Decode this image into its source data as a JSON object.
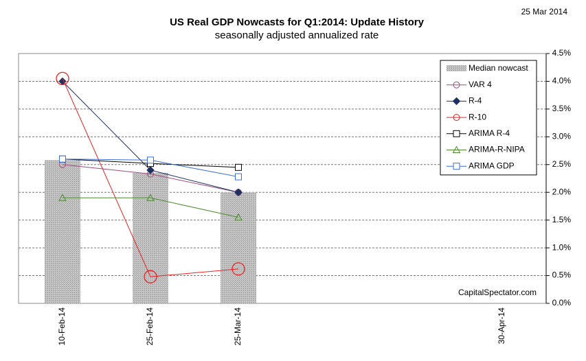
{
  "chart_data": {
    "type": "line",
    "title": "US Real GDP Nowcasts for Q1:2014: Update History",
    "subtitle": "seasonally adjusted annualized rate",
    "date_note": "25 Mar 2014",
    "source": "CapitalSpectator.com",
    "categories": [
      "10-Feb-14",
      "25-Feb-14",
      "25-Mar-14",
      null,
      null,
      "30-Apr-14"
    ],
    "ylim": [
      0,
      4.5
    ],
    "yticks": [
      {
        "value": 0,
        "label": "0.0%"
      },
      {
        "value": 0.5,
        "label": "0.5%"
      },
      {
        "value": 1,
        "label": "1.0%"
      },
      {
        "value": 1.5,
        "label": "1.5%"
      },
      {
        "value": 2,
        "label": "2.0%"
      },
      {
        "value": 2.5,
        "label": "2.5%"
      },
      {
        "value": 3,
        "label": "3.0%"
      },
      {
        "value": 3.5,
        "label": "3.5%"
      },
      {
        "value": 4,
        "label": "4.0%"
      },
      {
        "value": 4.5,
        "label": "4.5%"
      }
    ],
    "grid": true,
    "legend": "upper right",
    "series": [
      {
        "name": "Median nowcast",
        "style": "bar",
        "color": "#b3b3b3",
        "values": [
          2.58,
          2.35,
          2.0,
          null,
          null,
          null
        ]
      },
      {
        "name": "VAR 4",
        "marker": "circle",
        "color": "#a04a7c",
        "values": [
          2.5,
          2.33,
          2.0,
          null,
          null,
          null
        ]
      },
      {
        "name": "R-4",
        "marker": "diamond",
        "color": "#1f3060",
        "values": [
          4.0,
          2.4,
          2.0,
          null,
          null,
          null
        ]
      },
      {
        "name": "R-10",
        "marker": "big-circle",
        "color": "#ee2020",
        "values": [
          4.05,
          0.48,
          0.62,
          null,
          null,
          null
        ]
      },
      {
        "name": "ARIMA R-4",
        "marker": "square",
        "color": "#000000",
        "values": [
          2.6,
          2.52,
          2.45,
          null,
          null,
          null
        ]
      },
      {
        "name": "ARIMA-R-NIPA",
        "marker": "triangle",
        "color": "#4e8b2e",
        "values": [
          1.9,
          1.9,
          1.55,
          null,
          null,
          null
        ]
      },
      {
        "name": "ARIMA GDP",
        "marker": "square",
        "color": "#3a6fd8",
        "values": [
          2.6,
          2.58,
          2.28,
          null,
          null,
          null
        ]
      }
    ]
  }
}
